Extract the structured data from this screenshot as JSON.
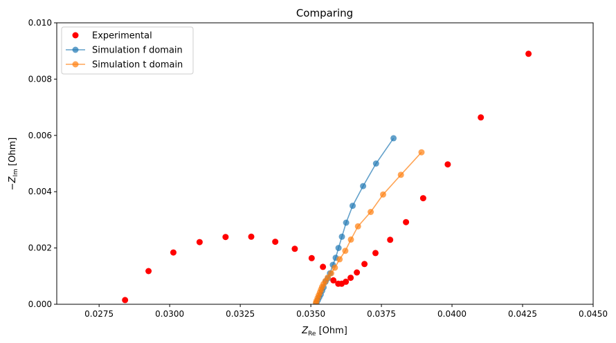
{
  "chart_data": {
    "type": "scatter",
    "title": "Comparing",
    "xlabel": {
      "main": "Z",
      "sub": "Re",
      "unit": " [Ohm]"
    },
    "ylabel": {
      "prefix": "−Z",
      "sub": "Im",
      "unit": " [Ohm]"
    },
    "xlim": [
      0.026,
      0.045
    ],
    "ylim": [
      0.0,
      0.01
    ],
    "xticks": [
      "0.0275",
      "0.0300",
      "0.0325",
      "0.0350",
      "0.0375",
      "0.0400",
      "0.0425",
      "0.0450"
    ],
    "xtick_values": [
      0.0275,
      0.03,
      0.0325,
      0.035,
      0.0375,
      0.04,
      0.0425,
      0.045
    ],
    "yticks": [
      "0.000",
      "0.002",
      "0.004",
      "0.006",
      "0.008",
      "0.010"
    ],
    "ytick_values": [
      0.0,
      0.002,
      0.004,
      0.006,
      0.008,
      0.01
    ],
    "grid": false,
    "legend_position": "top-left",
    "series": [
      {
        "name": "Experimental",
        "style": "markers",
        "color": "#ff0000",
        "x": [
          0.02842,
          0.02925,
          0.03013,
          0.03106,
          0.03198,
          0.03289,
          0.03374,
          0.03443,
          0.03503,
          0.03543,
          0.0358,
          0.03597,
          0.03609,
          0.03624,
          0.03641,
          0.03663,
          0.0369,
          0.03729,
          0.03781,
          0.03837,
          0.03898,
          0.03985,
          0.04102,
          0.04271
        ],
        "y": [
          0.00015,
          0.00118,
          0.00184,
          0.00221,
          0.00239,
          0.0024,
          0.00222,
          0.00197,
          0.00164,
          0.00133,
          0.00085,
          0.00073,
          0.00073,
          0.0008,
          0.00094,
          0.00113,
          0.00143,
          0.00182,
          0.00229,
          0.00292,
          0.00377,
          0.00497,
          0.00664,
          0.0089
        ]
      },
      {
        "name": "Simulation f domain",
        "style": "line-markers",
        "color": "#1f77b4",
        "x": [
          0.0352,
          0.03525,
          0.0353,
          0.03535,
          0.0354,
          0.03545,
          0.03552,
          0.0356,
          0.03568,
          0.03578,
          0.03588,
          0.03598,
          0.0361,
          0.03625,
          0.03648,
          0.03685,
          0.03731,
          0.03793
        ],
        "y": [
          5e-05,
          0.00015,
          0.00025,
          0.00035,
          0.00048,
          0.0006,
          0.0008,
          0.00092,
          0.0011,
          0.0014,
          0.00165,
          0.002,
          0.0024,
          0.0029,
          0.0035,
          0.0042,
          0.005,
          0.0059
        ]
      },
      {
        "name": "Simulation t domain",
        "style": "line-markers",
        "color": "#ff7f0e",
        "x": [
          0.03518,
          0.0352,
          0.03524,
          0.03528,
          0.03532,
          0.03536,
          0.0354,
          0.03545,
          0.03552,
          0.0356,
          0.03572,
          0.03585,
          0.03602,
          0.03622,
          0.03642,
          0.03667,
          0.03712,
          0.03756,
          0.03819,
          0.03892
        ],
        "y": [
          5e-05,
          0.00012,
          0.00022,
          0.00032,
          0.00042,
          0.00052,
          0.00062,
          0.00072,
          0.00083,
          0.00095,
          0.0011,
          0.0013,
          0.0016,
          0.0019,
          0.0023,
          0.00277,
          0.00328,
          0.0039,
          0.0046,
          0.0054
        ]
      }
    ]
  }
}
